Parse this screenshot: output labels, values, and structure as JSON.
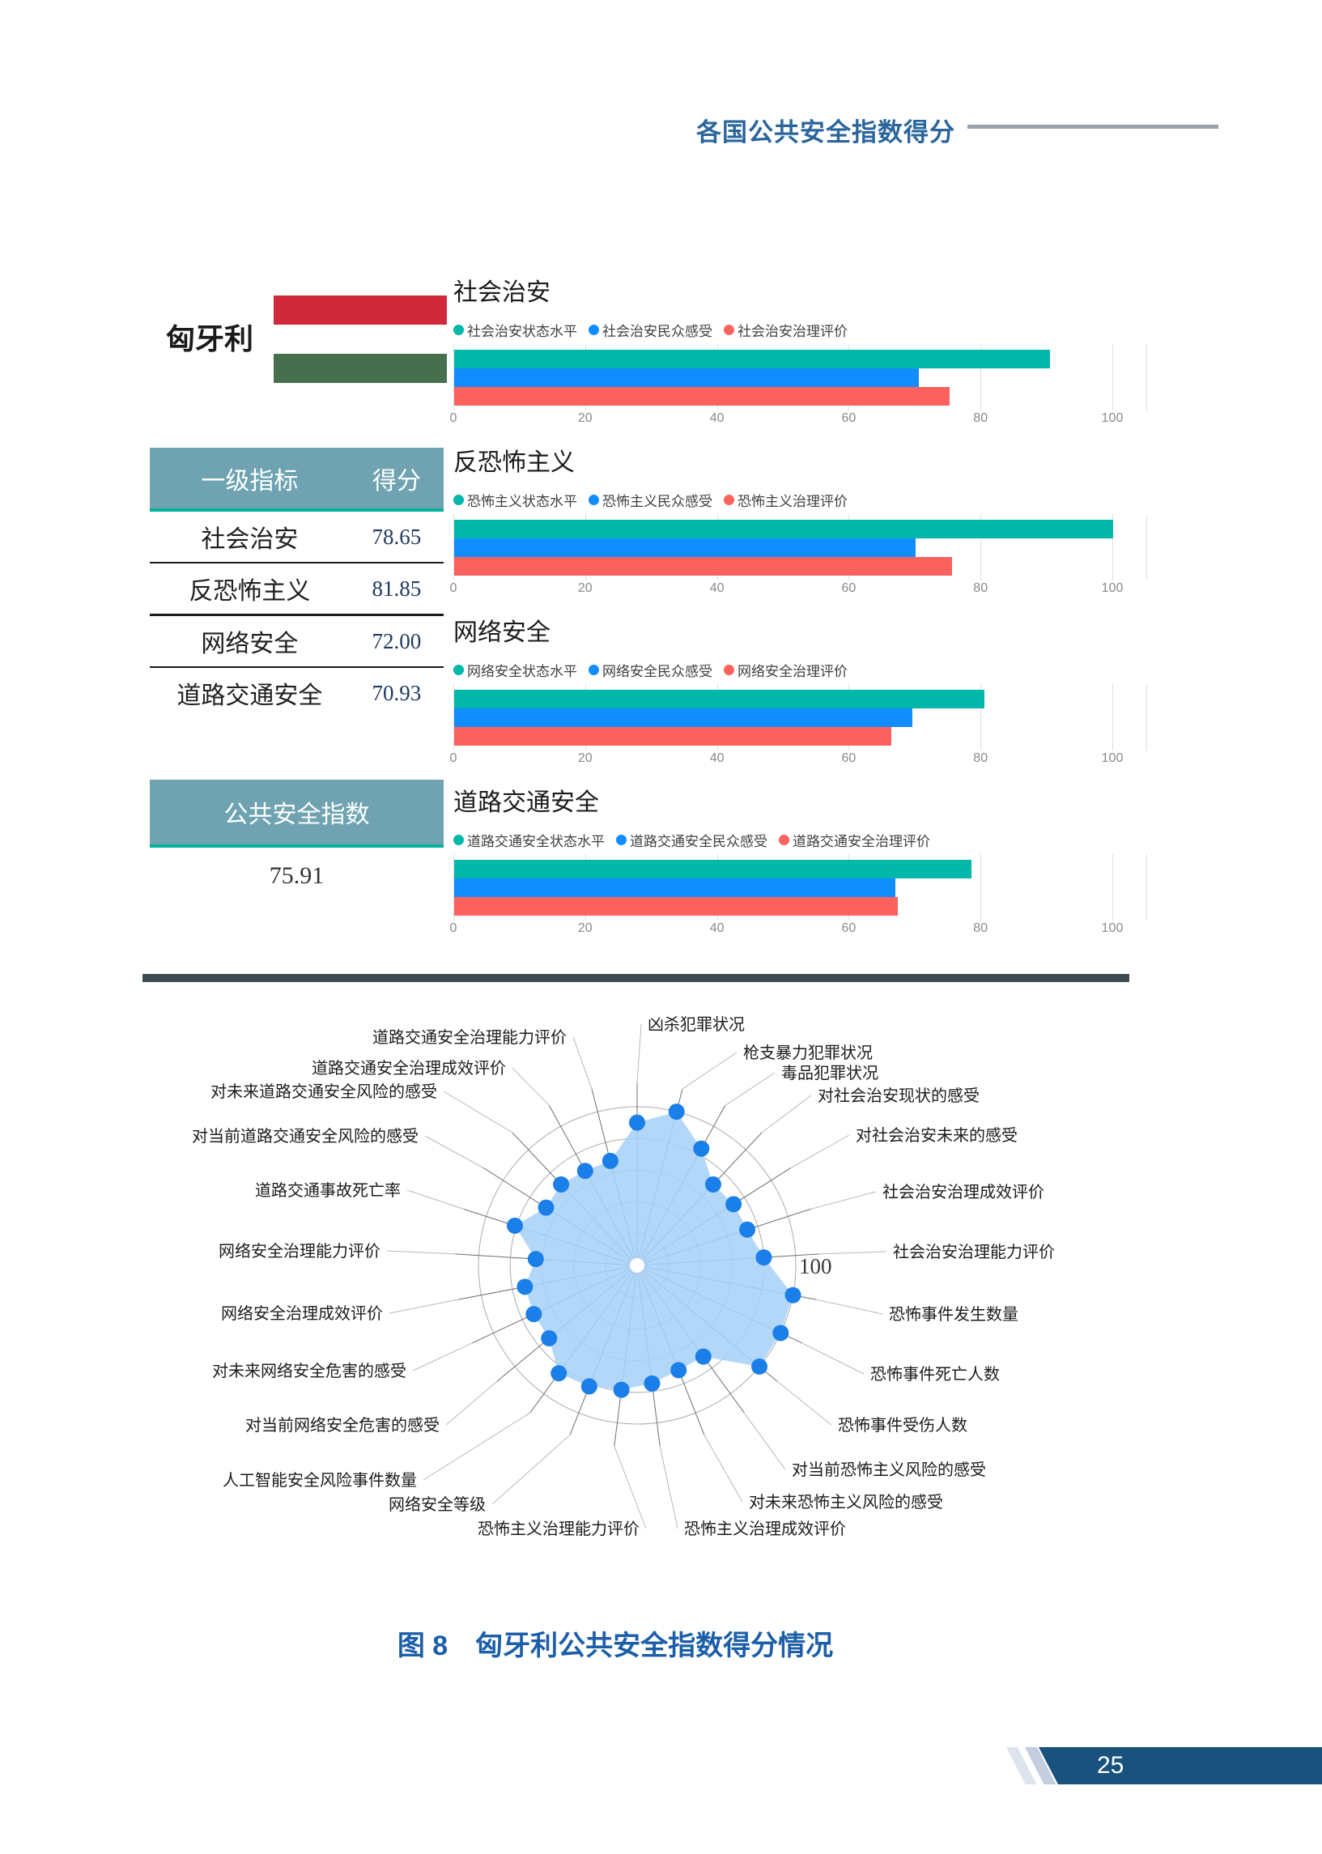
{
  "page": {
    "header_title": "各国公共安全指数得分",
    "caption": "图 8　匈牙利公共安全指数得分情况",
    "page_number": "25"
  },
  "country": {
    "name": "匈牙利"
  },
  "colors": {
    "accent": "#2a659c",
    "series": [
      "#00b8a9",
      "#118dff",
      "#fc625d"
    ],
    "table_header_bg": "#6fa3b1",
    "table_header_underline": "#00b09b",
    "flag": [
      "#d0293c",
      "#ffffff",
      "#456f4e"
    ],
    "radar_fill": "#a9d2f8",
    "radar_marker": "#1a7fe8",
    "footer_bg": "#1a527e",
    "divider": "#3d4a4f"
  },
  "table": {
    "headers": [
      "一级指标",
      "得分"
    ],
    "rows": [
      {
        "label": "社会治安",
        "score": "78.65"
      },
      {
        "label": "反恐怖主义",
        "score": "81.85"
      },
      {
        "label": "网络安全",
        "score": "72.00"
      },
      {
        "label": "道路交通安全",
        "score": "70.93"
      }
    ]
  },
  "index": {
    "label": "公共安全指数",
    "value": "75.91"
  },
  "chart_data": [
    {
      "type": "bar",
      "title": "社会治安",
      "legend": [
        "社会治安状态水平",
        "社会治安民众感受",
        "社会治安治理评价"
      ],
      "values": [
        90.4,
        70.5,
        75.2
      ],
      "xlim": [
        0,
        100
      ],
      "ticks": [
        0,
        20,
        40,
        60,
        80,
        100
      ]
    },
    {
      "type": "bar",
      "title": "反恐怖主义",
      "legend": [
        "恐怖主义状态水平",
        "恐怖主义民众感受",
        "恐怖主义治理评价"
      ],
      "values": [
        100,
        70,
        75.5
      ],
      "xlim": [
        0,
        100
      ],
      "ticks": [
        0,
        20,
        40,
        60,
        80,
        100
      ]
    },
    {
      "type": "bar",
      "title": "网络安全",
      "legend": [
        "网络安全状态水平",
        "网络安全民众感受",
        "网络安全治理评价"
      ],
      "values": [
        80.5,
        69.5,
        66.3
      ],
      "xlim": [
        0,
        100
      ],
      "ticks": [
        0,
        20,
        40,
        60,
        80,
        100
      ]
    },
    {
      "type": "bar",
      "title": "道路交通安全",
      "legend": [
        "道路交通安全状态水平",
        "道路交通安全民众感受",
        "道路交通安全治理评价"
      ],
      "values": [
        78.5,
        67,
        67.3
      ],
      "xlim": [
        0,
        100
      ],
      "ticks": [
        0,
        20,
        40,
        60,
        80,
        100
      ]
    },
    {
      "type": "radar",
      "max": 100,
      "ring_values": [
        20,
        40,
        60,
        80,
        100
      ],
      "axis_max_label": "100",
      "axes": [
        "凶杀犯罪状况",
        "枪支暴力犯罪状况",
        "毒品犯罪状况",
        "对社会治安现状的感受",
        "对社会治安未来的感受",
        "社会治安治理成效评价",
        "社会治安治理能力评价",
        "恐怖事件发生数量",
        "恐怖事件死亡人数",
        "恐怖事件受伤人数",
        "对当前恐怖主义风险的感受",
        "对未来恐怖主义风险的感受",
        "恐怖主义治理成效评价",
        "恐怖主义治理能力评价",
        "网络安全等级",
        "人工智能安全风险事件数量",
        "对当前网络安全危害的感受",
        "对未来网络安全危害的感受",
        "网络安全治理成效评价",
        "网络安全治理能力评价",
        "道路交通事故死亡率",
        "对当前道路交通安全风险的感受",
        "对未来道路交通安全风险的感受",
        "道路交通安全治理成效评价",
        "道路交通安全治理能力评价"
      ],
      "values": [
        90,
        100,
        84,
        70,
        72,
        73,
        80,
        100,
        100,
        100,
        71,
        71,
        75,
        79,
        82,
        84,
        72,
        72,
        72,
        64,
        81,
        68,
        70,
        68,
        68
      ]
    }
  ]
}
